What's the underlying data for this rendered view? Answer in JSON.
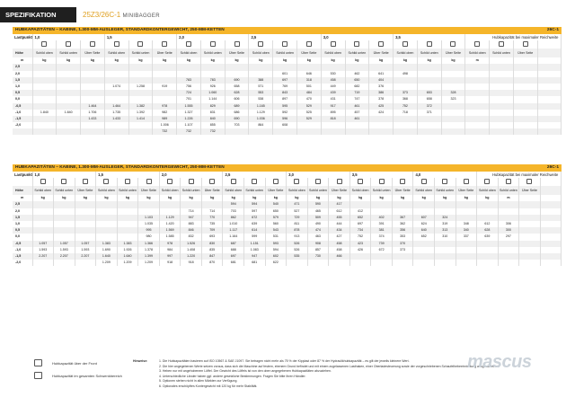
{
  "header": {
    "section": "SPEZIFIKATION",
    "model": "25Z3/26C-1",
    "model_sub": "MINIBAGGER"
  },
  "t1": {
    "title": "HUBKAPAZITÄTEN – KABINE, 1.300-MM-AUSLEGER, STANDARDKONTERGEWICHT, 250-MM-KETTEN",
    "code": "26C-1",
    "lastpunkt": "Lastpunkt",
    "radii": [
      "1,0",
      "1,5",
      "2,0",
      "2,5",
      "3,0",
      "3,5"
    ],
    "remark": "Hubkapazität bei maximaler Reichweite",
    "hoehe": "Höhe",
    "sub": [
      "Schild oben",
      "Schild unten",
      "Über Seite"
    ],
    "units": [
      "m",
      "kg",
      "kg",
      "kg",
      "kg",
      "kg",
      "kg",
      "kg",
      "kg",
      "kg",
      "kg",
      "kg",
      "kg",
      "kg",
      "kg",
      "kg",
      "kg",
      "kg",
      "kg",
      "m"
    ],
    "rows": [
      [
        "2,5",
        "",
        "",
        "",
        "",
        "",
        "",
        "",
        "",
        "",
        "",
        "",
        "",
        "",
        "",
        "",
        "",
        "",
        "",
        ""
      ],
      [
        "2,0",
        "",
        "",
        "",
        "",
        "",
        "",
        "",
        "",
        "",
        "",
        "601",
        "646",
        "530",
        "462",
        "641",
        "498",
        "",
        "",
        ""
      ],
      [
        "1,5",
        "",
        "",
        "",
        "",
        "",
        "",
        "783",
        "783",
        "690",
        "388",
        "697",
        "318",
        "458",
        "650",
        "404",
        "",
        "",
        "",
        ""
      ],
      [
        "1,0",
        "",
        "",
        "",
        "1.074",
        "1.258",
        "919",
        "756",
        "926",
        "658",
        "571",
        "769",
        "501",
        "449",
        "682",
        "376",
        "",
        "",
        "",
        ""
      ],
      [
        "0,5",
        "",
        "",
        "",
        "",
        "",
        "",
        "724",
        "1.060",
        "628",
        "553",
        "843",
        "484",
        "439",
        "719",
        "386",
        "373",
        "653",
        "328"
      ],
      [
        "0,0",
        "",
        "",
        "",
        "",
        "",
        "",
        "701",
        "1.144",
        "606",
        "538",
        "897",
        "470",
        "431",
        "747",
        "378",
        "368",
        "658",
        "323"
      ],
      [
        "-0,5",
        "",
        "",
        "1.464",
        "1.464",
        "1.382",
        "978",
        "1.555",
        "829",
        "689",
        "1.165",
        "595",
        "529",
        "917",
        "461",
        "425",
        "752",
        "372",
        ""
      ],
      [
        "-1,0",
        "1.840",
        "1.840",
        "1.706",
        "1.735",
        "1.392",
        "982",
        "1.327",
        "831",
        "686",
        "1.129",
        "592",
        "525",
        "895",
        "457",
        "424",
        "718",
        "371",
        ""
      ],
      [
        "-1,5",
        "",
        "",
        "1.433",
        "1.433",
        "1.414",
        "989",
        "1.226",
        "840",
        "690",
        "1.036",
        "596",
        "529",
        "818",
        "461",
        "",
        "",
        "",
        ""
      ],
      [
        "-2,0",
        "",
        "",
        "",
        "",
        "",
        "1.006",
        "1.107",
        "855",
        "703",
        "864",
        "608",
        "",
        "",
        "",
        "",
        "",
        "",
        "",
        ""
      ],
      [
        "",
        "",
        "",
        "",
        "",
        "",
        "732",
        "732",
        "732",
        "",
        "",
        "",
        "",
        "",
        "",
        "",
        "",
        "",
        ""
      ]
    ]
  },
  "t2": {
    "title": "HUBKAPAZITÄTEN – KABINE, 1.300-MM-AUSLEGER, STANDARDKONTERGEWICHT, 250-MM-KETTEN",
    "code": "26C-1",
    "lastpunkt": "Lastpunkt",
    "radii": [
      "1,0",
      "1,5",
      "2,0",
      "2,5",
      "3,0",
      "3,5",
      "4,0"
    ],
    "remark": "Hubkapazität bei maximaler Reichweite",
    "hoehe": "Höhe",
    "sub": [
      "Schild oben",
      "Schild unten",
      "Über Seite"
    ],
    "units": [
      "m",
      "kg",
      "kg",
      "kg",
      "kg",
      "kg",
      "kg",
      "kg",
      "kg",
      "kg",
      "kg",
      "kg",
      "kg",
      "kg",
      "kg",
      "kg",
      "kg",
      "kg",
      "kg",
      "kg",
      "kg",
      "kg",
      "kg",
      "m"
    ],
    "rows": [
      [
        "2,5",
        "",
        "",
        "",
        "",
        "",
        "",
        "",
        "",
        "",
        "594",
        "594",
        "540",
        "471",
        "590",
        "417",
        "",
        "",
        "",
        "",
        "",
        "",
        "",
        ""
      ],
      [
        "2,0",
        "",
        "",
        "",
        "",
        "",
        "",
        "",
        "714",
        "714",
        "703",
        "597",
        "650",
        "527",
        "465",
        "612",
        "412",
        "",
        "",
        "",
        "",
        "",
        "",
        ""
      ],
      [
        "1,5",
        "",
        "",
        "",
        "",
        "",
        "1.103",
        "1.129",
        "947",
        "770",
        "862",
        "672",
        "579",
        "729",
        "509",
        "455",
        "652",
        "402",
        "367",
        "607",
        "324",
        "",
        ""
      ],
      [
        "1,0",
        "",
        "",
        "",
        "",
        "",
        "1.035",
        "1.420",
        "883",
        "735",
        "1.010",
        "639",
        "560",
        "811",
        "490",
        "444",
        "697",
        "391",
        "362",
        "624",
        "319",
        "348",
        "612",
        "306"
      ],
      [
        "0,5",
        "",
        "",
        "",
        "",
        "",
        "995",
        "1.569",
        "846",
        "709",
        "1.117",
        "614",
        "543",
        "878",
        "474",
        "434",
        "734",
        "381",
        "356",
        "640",
        "313",
        "340",
        "628",
        "300"
      ],
      [
        "0,0",
        "",
        "",
        "",
        "",
        "",
        "980",
        "1.585",
        "832",
        "693",
        "1.164",
        "599",
        "531",
        "913",
        "463",
        "427",
        "752",
        "374",
        "353",
        "652",
        "310",
        "337",
        "639",
        "297"
      ],
      [
        "-0,5",
        "1.057",
        "1.057",
        "1.057",
        "1.383",
        "1.383",
        "1.366",
        "978",
        "1.526",
        "830",
        "687",
        "1.151",
        "593",
        "526",
        "908",
        "458",
        "423",
        "739",
        "370",
        "",
        "",
        "",
        "",
        ""
      ],
      [
        "-1,0",
        "1.593",
        "1.593",
        "1.593",
        "1.690",
        "1.926",
        "1.378",
        "984",
        "1.408",
        "835",
        "688",
        "1.083",
        "594",
        "526",
        "857",
        "458",
        "426",
        "672",
        "373",
        "",
        "",
        "",
        "",
        ""
      ],
      [
        "-1,5",
        "2.207",
        "2.207",
        "2.207",
        "1.640",
        "1.640",
        "1.399",
        "997",
        "1.220",
        "847",
        "697",
        "947",
        "602",
        "535",
        "730",
        "466",
        "",
        "",
        "",
        "",
        "",
        "",
        "",
        ""
      ],
      [
        "-2,0",
        "",
        "",
        "",
        "1.209",
        "1.209",
        "1.209",
        "918",
        "918",
        "870",
        "681",
        "681",
        "622",
        "",
        "",
        "",
        "",
        "",
        "",
        "",
        "",
        "",
        "",
        ""
      ]
    ]
  },
  "legend": [
    {
      "icon": "hook-front-icon",
      "text": "Hubkapazität über der Front"
    },
    {
      "icon": "hook-swing-icon",
      "text": "Hubkapazität im gesamten Schwenkbereich"
    }
  ],
  "notes": {
    "title": "Hinweise:",
    "items": [
      "1. Die Hubkapazitäten basieren auf ISO 10567 & SAE J1097. Sie betragen nicht mehr als 75 % der Kipplast oder 87 % der Hydraulikhubkapazität – es gilt der jeweils kleinere Wert.",
      "2. Die hier angegebenen Werte setzen voraus, dass sich die Maschine auf festem, ebenem Grund befindet und mit einem zugelassenen Lasthaken, einer Oberladesteuerung sowie der vorgeschriebenen Schaufelhebeeinrichtung ausgestattet ist.",
      "3. Heben nur mit angehobenem Löffel. Der Gewicht des Löffels ist von den oben angegebenen Hubkapazitäten abzuziehen.",
      "4. Unterschiedliche Länder haben ggf. andere gesetzliche Bestimmungen. Fragen Sie bitte Ihren Händler.",
      "5. Optionen stehen nicht in allen Märkten zur Verfügung.",
      "6. Optionales erschöpftes Kontergewicht mit 120 kg für mehr Stabilität."
    ]
  },
  "watermark": "mascus"
}
